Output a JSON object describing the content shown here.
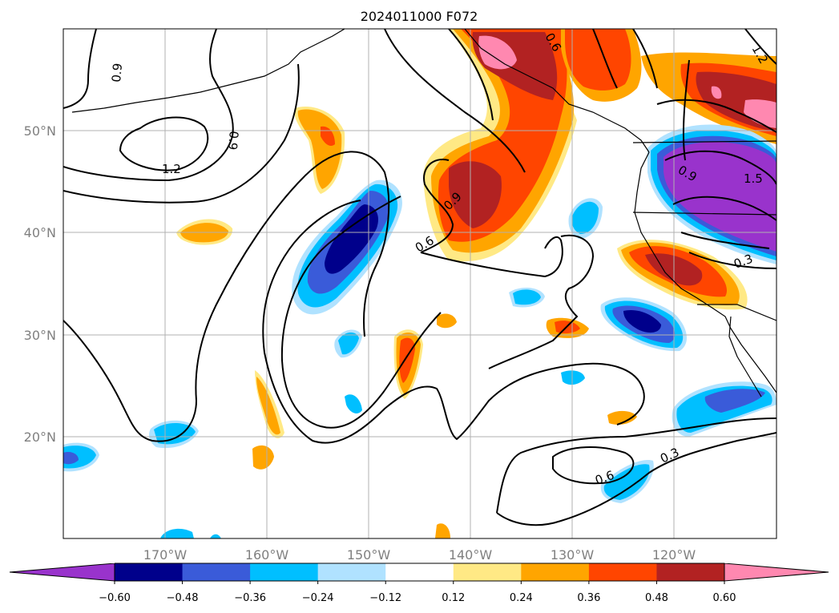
{
  "title": "2024011000 F072",
  "map": {
    "lon_range": [
      -180,
      -110
    ],
    "lat_range": [
      10,
      60
    ],
    "gridlines": true,
    "lon_labels": [
      "170°W",
      "160°W",
      "150°W",
      "140°W",
      "130°W",
      "120°W"
    ],
    "lat_labels": [
      "50°N",
      "40°N",
      "30°N",
      "20°N"
    ],
    "contour_labels": [
      "0.9",
      "0.9",
      "1.2",
      "0.6",
      "0.9",
      "0.6",
      "0.9",
      "1.5",
      "0.3",
      "0.6",
      "0.3",
      "1.2"
    ]
  },
  "colorbar": {
    "ticks": [
      "−0.60",
      "−0.48",
      "−0.36",
      "−0.24",
      "−0.12",
      "0.12",
      "0.24",
      "0.36",
      "0.48",
      "0.60"
    ],
    "colors": [
      "#9933cc",
      "#00008b",
      "#3a5bd9",
      "#00bfff",
      "#b0e2ff",
      "#ffffff",
      "#ffe985",
      "#ffa500",
      "#ff4500",
      "#b22222",
      "#ff88b0"
    ],
    "extend": "both"
  }
}
